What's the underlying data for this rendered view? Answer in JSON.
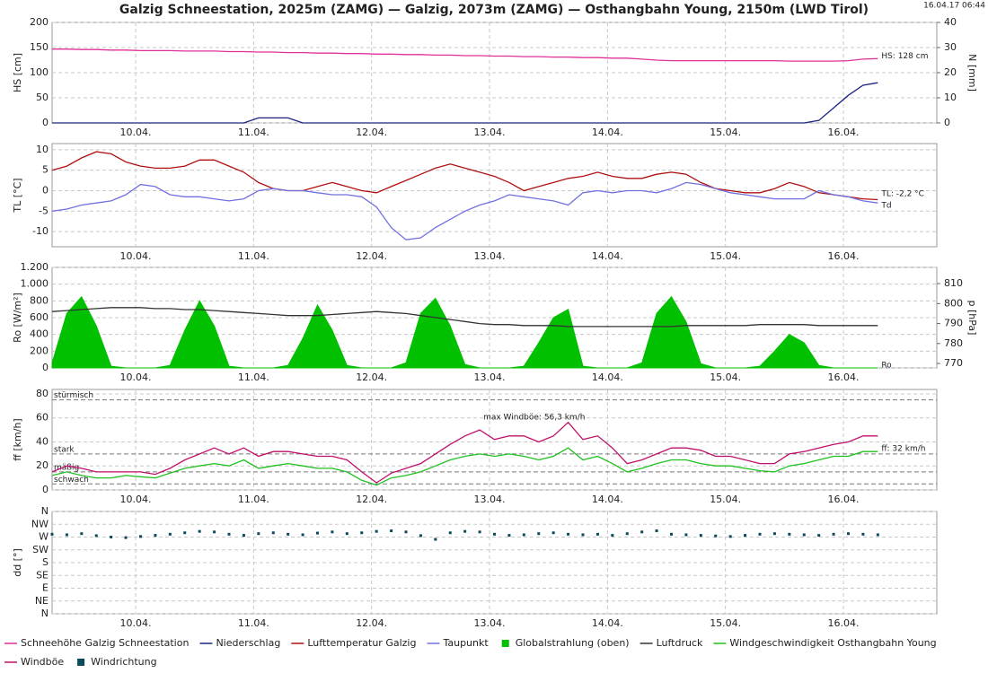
{
  "title": "Galzig Schneestation, 2025m (ZAMG) — Galzig, 2073m (ZAMG) — Osthangbahn Young, 2150m (LWD Tirol)",
  "timestamp": "16.04.17 06:44",
  "chart_data": [
    {
      "type": "line",
      "ylabel": "HS [cm]",
      "y2label": "N [mm]",
      "xlim": [
        0,
        180
      ],
      "xticks": [
        {
          "value": 17,
          "label": "10.04."
        },
        {
          "value": 41,
          "label": "11.04."
        },
        {
          "value": 65,
          "label": "12.04."
        },
        {
          "value": 89,
          "label": "13.04."
        },
        {
          "value": 113,
          "label": "14.04."
        },
        {
          "value": 137,
          "label": "15.04."
        },
        {
          "value": 161,
          "label": "16.04."
        }
      ],
      "ylim": [
        0,
        200
      ],
      "yticks": [
        0,
        50,
        100,
        150,
        200
      ],
      "y2lim": [
        0,
        40
      ],
      "y2ticks": [
        0,
        10,
        20,
        30,
        40
      ],
      "grid": true,
      "x": [
        0,
        3,
        6,
        9,
        12,
        15,
        18,
        21,
        24,
        27,
        30,
        33,
        36,
        39,
        42,
        45,
        48,
        51,
        54,
        57,
        60,
        63,
        66,
        69,
        72,
        75,
        78,
        81,
        84,
        87,
        90,
        93,
        96,
        99,
        102,
        105,
        108,
        111,
        114,
        117,
        120,
        123,
        126,
        129,
        132,
        135,
        138,
        141,
        144,
        147,
        150,
        153,
        156,
        159,
        162,
        165,
        168
      ],
      "series": [
        {
          "name": "Schneehöhe Galzig Schneestation",
          "color": "#e0309a",
          "values": [
            147,
            147,
            146,
            146,
            145,
            145,
            144,
            144,
            144,
            143,
            143,
            143,
            142,
            142,
            141,
            141,
            140,
            140,
            139,
            139,
            138,
            138,
            137,
            137,
            136,
            136,
            135,
            135,
            134,
            134,
            133,
            133,
            132,
            132,
            131,
            131,
            130,
            130,
            129,
            129,
            127,
            125,
            124,
            124,
            124,
            124,
            124,
            124,
            124,
            124,
            123,
            123,
            123,
            123,
            124,
            127,
            128
          ]
        },
        {
          "name": "Niederschlag",
          "color": "#1a237e",
          "axis": "y2",
          "values": [
            0,
            0,
            0,
            0,
            0,
            0,
            0,
            0,
            0,
            0,
            0,
            0,
            0,
            0,
            2,
            2,
            2,
            0,
            0,
            0,
            0,
            0,
            0,
            0,
            0,
            0,
            0,
            0,
            0,
            0,
            0,
            0,
            0,
            0,
            0,
            0,
            0,
            0,
            0,
            0,
            0,
            0,
            0,
            0,
            0,
            0,
            0,
            0,
            0,
            0,
            0,
            0,
            1,
            6,
            11,
            15,
            16
          ]
        }
      ],
      "annotations": [
        {
          "text": "HS: 128 cm",
          "x": 168,
          "y": 133,
          "color": "#e0309a"
        }
      ]
    },
    {
      "type": "line",
      "ylabel": "TL [°C]",
      "xlim": [
        0,
        180
      ],
      "xticks": [
        {
          "value": 17,
          "label": "10.04."
        },
        {
          "value": 41,
          "label": "11.04."
        },
        {
          "value": 65,
          "label": "12.04."
        },
        {
          "value": 89,
          "label": "13.04."
        },
        {
          "value": 113,
          "label": "14.04."
        },
        {
          "value": 137,
          "label": "15.04."
        },
        {
          "value": 161,
          "label": "16.04."
        }
      ],
      "ylim": [
        -13.7,
        11.5
      ],
      "yticks": [
        -10,
        -5,
        0,
        5,
        10
      ],
      "grid": true,
      "x": [
        0,
        3,
        6,
        9,
        12,
        15,
        18,
        21,
        24,
        27,
        30,
        33,
        36,
        39,
        42,
        45,
        48,
        51,
        54,
        57,
        60,
        63,
        66,
        69,
        72,
        75,
        78,
        81,
        84,
        87,
        90,
        93,
        96,
        99,
        102,
        105,
        108,
        111,
        114,
        117,
        120,
        123,
        126,
        129,
        132,
        135,
        138,
        141,
        144,
        147,
        150,
        153,
        156,
        159,
        162,
        165,
        168
      ],
      "series": [
        {
          "name": "Lufttemperatur Galzig",
          "color": "#b01010",
          "values": [
            5,
            6,
            8,
            9.5,
            9,
            7,
            6,
            5.5,
            5.5,
            6,
            7.5,
            7.5,
            6,
            4.5,
            2,
            0.5,
            0,
            0,
            1,
            2,
            1,
            0,
            -0.5,
            1,
            2.5,
            4,
            5.5,
            6.5,
            5.5,
            4.5,
            3.5,
            2,
            0,
            1,
            2,
            3,
            3.5,
            4.5,
            3.5,
            3,
            3,
            4,
            4.5,
            4,
            2,
            0.5,
            0,
            -0.5,
            -0.5,
            0.5,
            2,
            1,
            -0.5,
            -1,
            -1.5,
            -2,
            -2.2
          ]
        },
        {
          "name": "Taupunkt",
          "color": "#7070e0",
          "values": [
            -5,
            -4.5,
            -3.5,
            -3,
            -2.5,
            -1,
            1.5,
            1,
            -1,
            -1.5,
            -1.5,
            -2,
            -2.5,
            -2,
            0,
            0.5,
            0,
            0,
            -0.5,
            -1,
            -1,
            -1.5,
            -4,
            -9,
            -12,
            -11.5,
            -9,
            -7,
            -5,
            -3.5,
            -2.5,
            -1,
            -1.5,
            -2,
            -2.5,
            -3.5,
            -0.5,
            0,
            -0.5,
            0,
            0,
            -0.5,
            0.5,
            2,
            1.5,
            0.5,
            -0.5,
            -1,
            -1.5,
            -2,
            -2,
            -2,
            0,
            -1,
            -1.5,
            -2.5,
            -3
          ]
        }
      ],
      "annotations": [
        {
          "text": "TL: -2,2 °C",
          "x": 168,
          "y": -0.8,
          "color": "#b01010"
        },
        {
          "text": "Td",
          "x": 168,
          "y": -3.6,
          "color": "#7070e0"
        }
      ]
    },
    {
      "type": "line",
      "ylabel": "Ro [W/m²]",
      "y2label": "p [hPa]",
      "xlim": [
        0,
        180
      ],
      "xticks": [
        {
          "value": 17,
          "label": "10.04."
        },
        {
          "value": 41,
          "label": "11.04."
        },
        {
          "value": 65,
          "label": "12.04."
        },
        {
          "value": 89,
          "label": "13.04."
        },
        {
          "value": 113,
          "label": "14.04."
        },
        {
          "value": 137,
          "label": "15.04."
        },
        {
          "value": 161,
          "label": "16.04."
        }
      ],
      "ylim": [
        0,
        1200
      ],
      "yticks": [
        0,
        200,
        400,
        600,
        800,
        {
          "value": 1000,
          "label": "1.000"
        },
        {
          "value": 1200,
          "label": "1.200"
        }
      ],
      "y2lim": [
        767.8,
        818.1
      ],
      "y2ticks": [
        770,
        780,
        790,
        800,
        810
      ],
      "grid": true,
      "x": [
        0,
        3,
        6,
        9,
        12,
        15,
        18,
        21,
        24,
        27,
        30,
        33,
        36,
        39,
        42,
        45,
        48,
        51,
        54,
        57,
        60,
        63,
        66,
        69,
        72,
        75,
        78,
        81,
        84,
        87,
        90,
        93,
        96,
        99,
        102,
        105,
        108,
        111,
        114,
        117,
        120,
        123,
        126,
        129,
        132,
        135,
        138,
        141,
        144,
        147,
        150,
        153,
        156,
        159,
        162,
        165,
        168
      ],
      "series": [
        {
          "name": "Globalstrahlung (oben)",
          "color": "#00c000",
          "type": "area",
          "values": [
            60,
            650,
            850,
            500,
            20,
            0,
            0,
            0,
            30,
            450,
            800,
            500,
            20,
            0,
            0,
            0,
            30,
            350,
            750,
            450,
            30,
            0,
            0,
            0,
            60,
            650,
            830,
            500,
            40,
            0,
            0,
            0,
            20,
            300,
            600,
            700,
            20,
            0,
            0,
            0,
            60,
            650,
            850,
            550,
            50,
            0,
            0,
            0,
            20,
            200,
            400,
            300,
            30,
            0,
            0,
            0,
            0
          ]
        },
        {
          "name": "Luftdruck",
          "color": "#333333",
          "axis": "y2",
          "values": [
            796,
            796.5,
            797,
            797.5,
            798,
            798,
            798,
            797.5,
            797.5,
            797,
            797,
            796.5,
            796,
            795.5,
            795,
            794.5,
            794,
            794,
            794,
            794.5,
            795,
            795.5,
            796,
            795.5,
            795,
            794,
            793,
            792,
            791,
            790,
            789.5,
            789.5,
            789,
            789,
            789,
            788.5,
            788.5,
            788.5,
            788.5,
            788.5,
            788.5,
            788.5,
            788.5,
            789,
            789,
            789,
            789,
            789,
            789.5,
            789.5,
            789.5,
            789.5,
            789,
            789,
            789,
            789,
            789
          ]
        }
      ],
      "annotations": [
        {
          "text": "Ro",
          "x": 168,
          "y": 32,
          "color": "#00a000"
        }
      ]
    },
    {
      "type": "line",
      "ylabel": "ff [km/h]",
      "xlim": [
        0,
        180
      ],
      "xticks": [
        {
          "value": 17,
          "label": "10.04."
        },
        {
          "value": 41,
          "label": "11.04."
        },
        {
          "value": 65,
          "label": "12.04."
        },
        {
          "value": 89,
          "label": "13.04."
        },
        {
          "value": 113,
          "label": "14.04."
        },
        {
          "value": 137,
          "label": "15.04."
        },
        {
          "value": 161,
          "label": "16.04."
        }
      ],
      "ylim": [
        0,
        83.7
      ],
      "yticks": [
        0,
        20,
        40,
        60,
        80
      ],
      "grid": true,
      "thresholds": [
        {
          "label": "stürmisch",
          "value": 75
        },
        {
          "label": "stark",
          "value": 30
        },
        {
          "label": "mäßig",
          "value": 15
        },
        {
          "label": "schwach",
          "value": 5
        }
      ],
      "x": [
        0,
        3,
        6,
        9,
        12,
        15,
        18,
        21,
        24,
        27,
        30,
        33,
        36,
        39,
        42,
        45,
        48,
        51,
        54,
        57,
        60,
        63,
        66,
        69,
        72,
        75,
        78,
        81,
        84,
        87,
        90,
        93,
        96,
        99,
        102,
        105,
        108,
        111,
        114,
        117,
        120,
        123,
        126,
        129,
        132,
        135,
        138,
        141,
        144,
        147,
        150,
        153,
        156,
        159,
        162,
        165,
        168
      ],
      "series": [
        {
          "name": "Windgeschwindigkeit Osthangbahn Young",
          "color": "#20c020",
          "values": [
            12,
            15,
            12,
            10,
            10,
            12,
            11,
            10,
            14,
            18,
            20,
            22,
            20,
            25,
            18,
            20,
            22,
            20,
            18,
            18,
            15,
            8,
            4,
            10,
            12,
            15,
            20,
            25,
            28,
            30,
            28,
            30,
            28,
            25,
            28,
            35,
            25,
            28,
            22,
            15,
            18,
            22,
            25,
            25,
            22,
            20,
            20,
            18,
            16,
            15,
            20,
            22,
            25,
            28,
            28,
            32,
            32
          ]
        },
        {
          "name": "Windböe",
          "color": "#c0106a",
          "values": [
            15,
            20,
            18,
            15,
            15,
            15,
            15,
            13,
            18,
            25,
            30,
            35,
            30,
            35,
            28,
            32,
            32,
            30,
            28,
            28,
            25,
            15,
            6,
            14,
            18,
            22,
            30,
            38,
            45,
            50,
            42,
            45,
            45,
            40,
            45,
            56.3,
            42,
            45,
            35,
            22,
            25,
            30,
            35,
            35,
            33,
            28,
            28,
            25,
            22,
            22,
            30,
            32,
            35,
            38,
            40,
            45,
            45
          ]
        }
      ],
      "annotations": [
        {
          "text": "max Windböe: 56,3 km/h",
          "x": 87,
          "y": 60.5,
          "color": "#c0106a"
        },
        {
          "text": "ff: 32 km/h",
          "x": 168,
          "y": 34.4,
          "color": "#20a020"
        }
      ]
    },
    {
      "type": "scatter",
      "ylabel": "dd [°]",
      "xlim": [
        0,
        180
      ],
      "xticks": [
        {
          "value": 17,
          "label": "10.04."
        },
        {
          "value": 41,
          "label": "11.04."
        },
        {
          "value": 65,
          "label": "12.04."
        },
        {
          "value": 89,
          "label": "13.04."
        },
        {
          "value": 113,
          "label": "14.04."
        },
        {
          "value": 137,
          "label": "15.04."
        },
        {
          "value": 161,
          "label": "16.04."
        }
      ],
      "ylim": [
        0,
        360
      ],
      "yticks": [
        {
          "value": 0,
          "label": "N"
        },
        {
          "value": 45,
          "label": "NE"
        },
        {
          "value": 90,
          "label": "E"
        },
        {
          "value": 135,
          "label": "SE"
        },
        {
          "value": 180,
          "label": "S"
        },
        {
          "value": 225,
          "label": "SW"
        },
        {
          "value": 270,
          "label": "W"
        },
        {
          "value": 315,
          "label": "NW"
        },
        {
          "value": 360,
          "label": "N"
        }
      ],
      "grid": true,
      "x": [
        0,
        3,
        6,
        9,
        12,
        15,
        18,
        21,
        24,
        27,
        30,
        33,
        36,
        39,
        42,
        45,
        48,
        51,
        54,
        57,
        60,
        63,
        66,
        69,
        72,
        75,
        78,
        81,
        84,
        87,
        90,
        93,
        96,
        99,
        102,
        105,
        108,
        111,
        114,
        117,
        120,
        123,
        126,
        129,
        132,
        135,
        138,
        141,
        144,
        147,
        150,
        153,
        156,
        159,
        162,
        165,
        168
      ],
      "series": [
        {
          "name": "Windrichtung",
          "color": "#0b4a5a",
          "values": [
            280,
            278,
            282,
            275,
            270,
            268,
            272,
            276,
            280,
            285,
            290,
            288,
            280,
            276,
            282,
            285,
            280,
            278,
            284,
            288,
            282,
            285,
            290,
            292,
            288,
            275,
            262,
            285,
            290,
            288,
            280,
            276,
            278,
            282,
            285,
            280,
            278,
            280,
            276,
            282,
            288,
            292,
            280,
            278,
            276,
            274,
            272,
            276,
            280,
            282,
            280,
            278,
            276,
            280,
            282,
            280,
            278
          ]
        }
      ]
    }
  ]
}
